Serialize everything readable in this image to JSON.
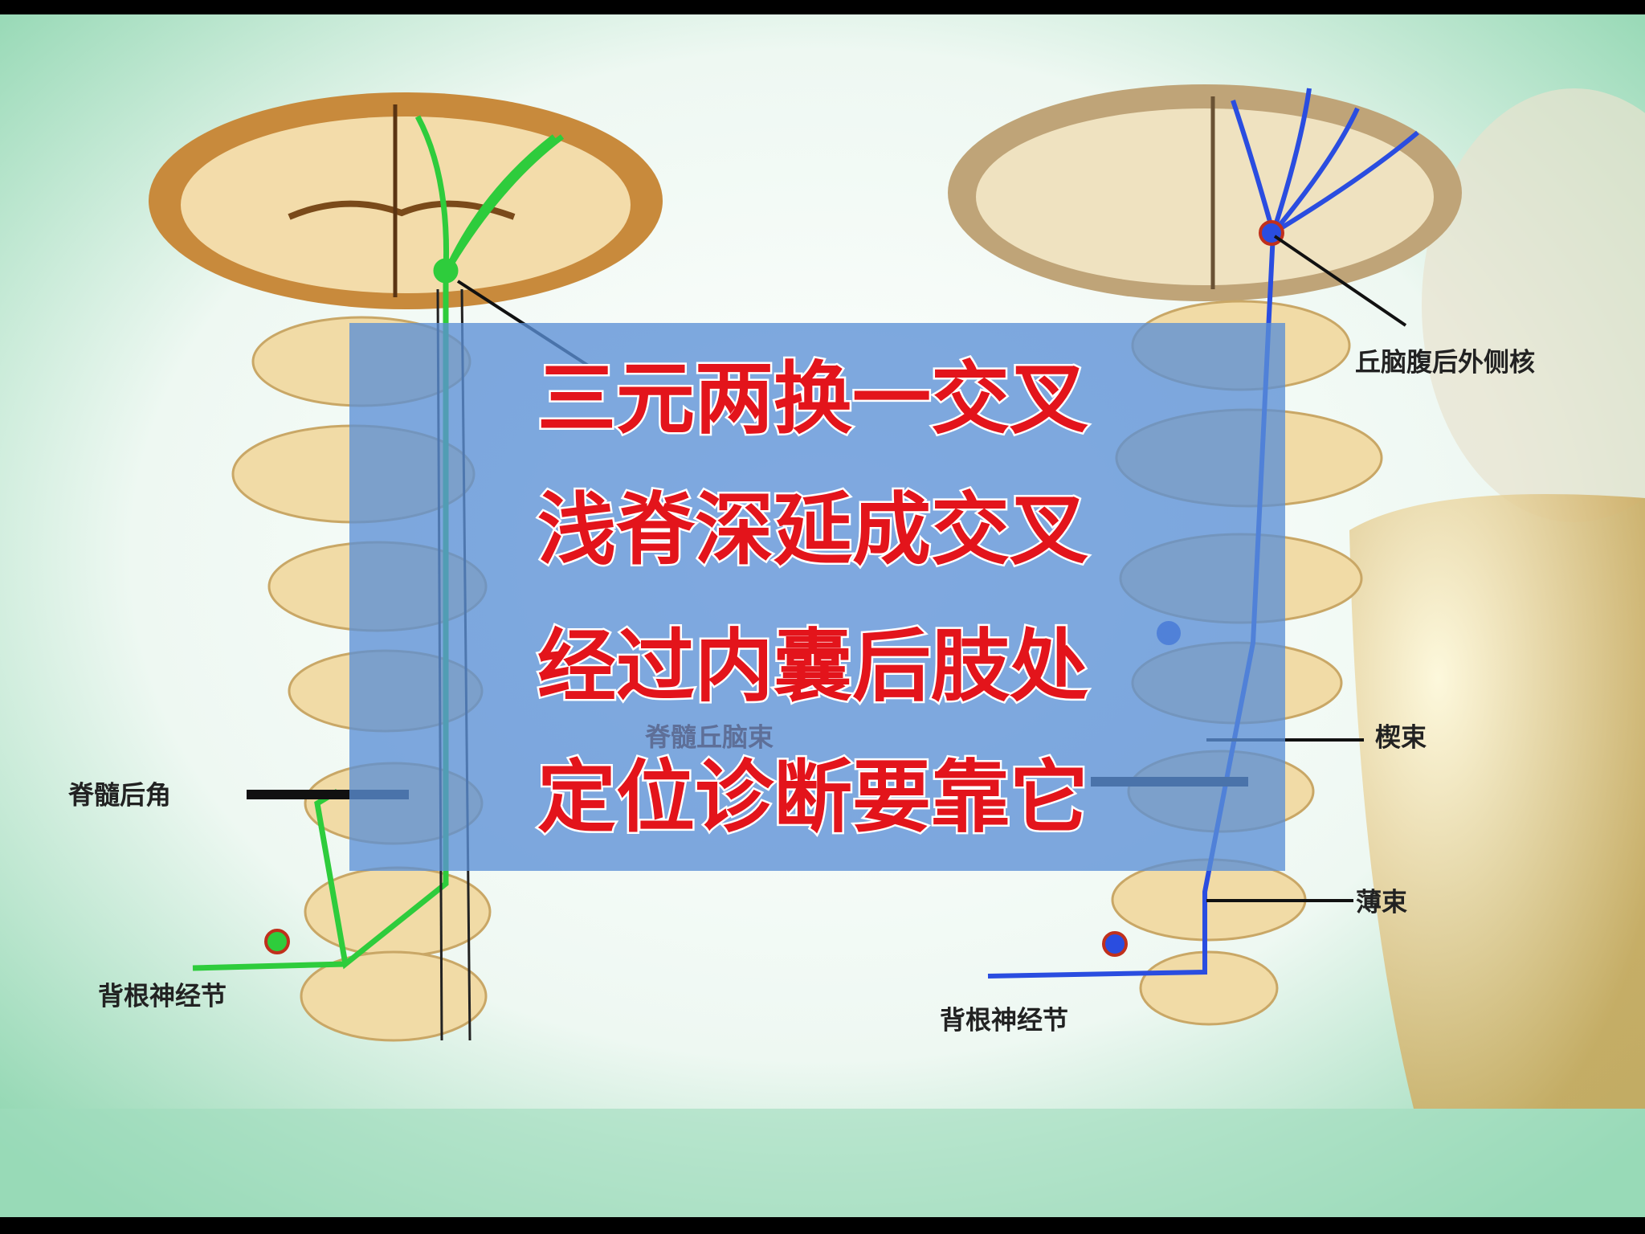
{
  "left_diagram": {
    "labels": {
      "dorsal_horn": "脊髓后角",
      "ganglion": "背根神经节",
      "tract": "脊髓丘脑束"
    }
  },
  "right_diagram": {
    "labels": {
      "thalamus": "丘脑腹后外侧核",
      "cuneate": "楔束",
      "gracile": "薄束",
      "ganglion": "背根神经节"
    }
  },
  "overlay": {
    "lines": [
      "三元两换一交叉",
      "浅脊深延成交叉",
      "经过内囊后肢处",
      "定位诊断要靠它"
    ]
  }
}
